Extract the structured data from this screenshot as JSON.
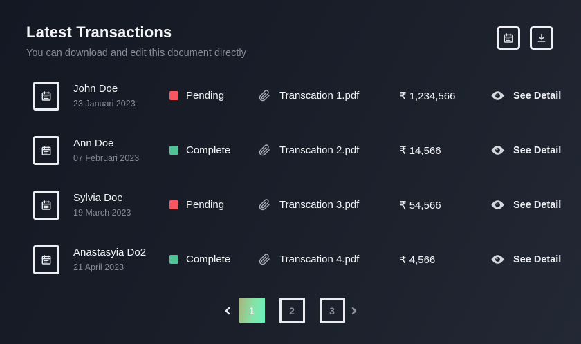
{
  "header": {
    "title": "Latest Transactions",
    "subtitle": "You can download and edit this document directly",
    "actions": [
      {
        "icon": "calendar-icon"
      },
      {
        "icon": "download-icon"
      }
    ]
  },
  "transactions": [
    {
      "name": "John Doe",
      "date": "23 Januari 2023",
      "status": "Pending",
      "status_color": "#f8575f",
      "file": "Transcation 1.pdf",
      "amount": "₹ 1,234,566",
      "detail_label": "See Detail"
    },
    {
      "name": "Ann Doe",
      "date": "07 Februari 2023",
      "status": "Complete",
      "status_color": "#4fc394",
      "file": "Transcation 2.pdf",
      "amount": "₹ 14,566",
      "detail_label": "See Detail"
    },
    {
      "name": "Sylvia Doe",
      "date": "19 March 2023",
      "status": "Pending",
      "status_color": "#f8575f",
      "file": "Transcation 3.pdf",
      "amount": "₹ 54,566",
      "detail_label": "See Detail"
    },
    {
      "name": "Anastasyia Do2",
      "date": "21 April 2023",
      "status": "Complete",
      "status_color": "#4fc394",
      "file": "Transcation 4.pdf",
      "amount": "₹ 4,566",
      "detail_label": "See Detail"
    }
  ],
  "pagination": {
    "pages": [
      "1",
      "2",
      "3"
    ],
    "active": "1"
  },
  "colors": {
    "pending": "#f8575f",
    "complete": "#4fc394",
    "active_page_gradient_start": "#a7b57c",
    "active_page_gradient_end": "#68f1be",
    "background_dark": "#141823",
    "background_light": "#232835"
  }
}
